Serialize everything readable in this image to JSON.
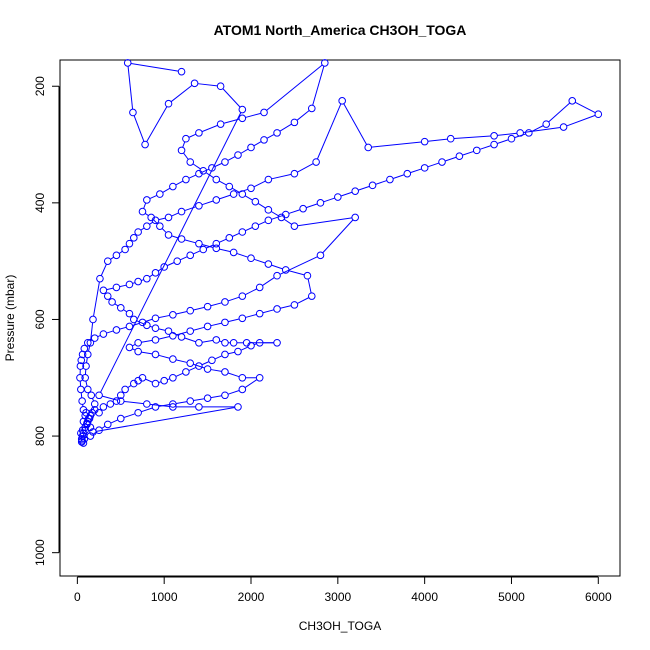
{
  "chart_data": {
    "type": "line",
    "title": "ATOM1 North_America CH3OH_TOGA",
    "xlabel": "CH3OH_TOGA",
    "ylabel": "Pressure (mbar)",
    "xlim": [
      -200,
      6250
    ],
    "ylim": [
      1040,
      155
    ],
    "y_reversed": true,
    "x_ticks": [
      0,
      1000,
      2000,
      3000,
      4000,
      5000,
      6000
    ],
    "y_ticks": [
      200,
      400,
      600,
      800,
      1000
    ],
    "series_color": "#0000ff",
    "marker": "open-circle",
    "grid": false,
    "legend": "none",
    "points": [
      [
        50,
        810
      ],
      [
        70,
        812
      ],
      [
        55,
        808
      ],
      [
        80,
        805
      ],
      [
        40,
        795
      ],
      [
        60,
        790
      ],
      [
        90,
        785
      ],
      [
        110,
        780
      ],
      [
        70,
        775
      ],
      [
        130,
        770
      ],
      [
        150,
        765
      ],
      [
        100,
        760
      ],
      [
        200,
        755
      ],
      [
        250,
        760
      ],
      [
        300,
        750
      ],
      [
        380,
        745
      ],
      [
        450,
        740
      ],
      [
        500,
        730
      ],
      [
        550,
        720
      ],
      [
        650,
        710
      ],
      [
        700,
        705
      ],
      [
        750,
        700
      ],
      [
        900,
        710
      ],
      [
        1000,
        705
      ],
      [
        1100,
        700
      ],
      [
        1250,
        690
      ],
      [
        1400,
        680
      ],
      [
        1550,
        670
      ],
      [
        1700,
        660
      ],
      [
        1850,
        655
      ],
      [
        2000,
        645
      ],
      [
        2100,
        640
      ],
      [
        2300,
        640
      ],
      [
        1950,
        640
      ],
      [
        1800,
        640
      ],
      [
        1700,
        640
      ],
      [
        1600,
        635
      ],
      [
        1400,
        640
      ],
      [
        1200,
        630
      ],
      [
        1050,
        620
      ],
      [
        900,
        615
      ],
      [
        800,
        610
      ],
      [
        650,
        600
      ],
      [
        600,
        590
      ],
      [
        500,
        580
      ],
      [
        400,
        570
      ],
      [
        350,
        560
      ],
      [
        300,
        550
      ],
      [
        450,
        545
      ],
      [
        600,
        540
      ],
      [
        700,
        535
      ],
      [
        800,
        530
      ],
      [
        900,
        520
      ],
      [
        1000,
        510
      ],
      [
        1150,
        500
      ],
      [
        1300,
        490
      ],
      [
        1450,
        480
      ],
      [
        1600,
        470
      ],
      [
        1750,
        460
      ],
      [
        1900,
        450
      ],
      [
        2050,
        440
      ],
      [
        2200,
        430
      ],
      [
        2400,
        420
      ],
      [
        2600,
        410
      ],
      [
        2800,
        400
      ],
      [
        3000,
        390
      ],
      [
        3200,
        380
      ],
      [
        3400,
        370
      ],
      [
        3600,
        360
      ],
      [
        3800,
        350
      ],
      [
        4000,
        340
      ],
      [
        4200,
        330
      ],
      [
        4400,
        320
      ],
      [
        4600,
        310
      ],
      [
        4800,
        300
      ],
      [
        5000,
        290
      ],
      [
        5200,
        280
      ],
      [
        5400,
        265
      ],
      [
        5700,
        225
      ],
      [
        6000,
        248
      ],
      [
        5600,
        270
      ],
      [
        5100,
        280
      ],
      [
        4800,
        285
      ],
      [
        4300,
        290
      ],
      [
        4000,
        295
      ],
      [
        3350,
        305
      ],
      [
        3050,
        225
      ],
      [
        2750,
        330
      ],
      [
        2500,
        350
      ],
      [
        2200,
        360
      ],
      [
        2000,
        375
      ],
      [
        1800,
        385
      ],
      [
        1600,
        395
      ],
      [
        1400,
        405
      ],
      [
        1200,
        415
      ],
      [
        1050,
        425
      ],
      [
        900,
        430
      ],
      [
        800,
        440
      ],
      [
        700,
        450
      ],
      [
        650,
        460
      ],
      [
        600,
        470
      ],
      [
        550,
        480
      ],
      [
        450,
        490
      ],
      [
        350,
        500
      ],
      [
        260,
        530
      ],
      [
        180,
        600
      ],
      [
        150,
        640
      ],
      [
        120,
        660
      ],
      [
        100,
        680
      ],
      [
        90,
        700
      ],
      [
        120,
        720
      ],
      [
        160,
        730
      ],
      [
        200,
        745
      ],
      [
        170,
        760
      ],
      [
        140,
        770
      ],
      [
        110,
        778
      ],
      [
        90,
        790
      ],
      [
        70,
        795
      ],
      [
        60,
        800
      ],
      [
        50,
        805
      ],
      [
        150,
        800
      ],
      [
        250,
        790
      ],
      [
        350,
        780
      ],
      [
        500,
        770
      ],
      [
        700,
        760
      ],
      [
        900,
        750
      ],
      [
        1100,
        745
      ],
      [
        1300,
        740
      ],
      [
        1500,
        735
      ],
      [
        1700,
        730
      ],
      [
        1900,
        720
      ],
      [
        2100,
        700
      ],
      [
        1900,
        700
      ],
      [
        1700,
        690
      ],
      [
        1500,
        685
      ],
      [
        1300,
        675
      ],
      [
        1100,
        668
      ],
      [
        900,
        660
      ],
      [
        700,
        655
      ],
      [
        600,
        648
      ],
      [
        700,
        640
      ],
      [
        900,
        635
      ],
      [
        1100,
        628
      ],
      [
        1300,
        620
      ],
      [
        1500,
        612
      ],
      [
        1700,
        605
      ],
      [
        1900,
        598
      ],
      [
        2100,
        590
      ],
      [
        2300,
        582
      ],
      [
        2500,
        575
      ],
      [
        2700,
        560
      ],
      [
        2650,
        525
      ],
      [
        2400,
        515
      ],
      [
        2200,
        505
      ],
      [
        2000,
        495
      ],
      [
        1800,
        485
      ],
      [
        1600,
        478
      ],
      [
        1400,
        470
      ],
      [
        1200,
        462
      ],
      [
        1050,
        455
      ],
      [
        950,
        440
      ],
      [
        850,
        425
      ],
      [
        750,
        415
      ],
      [
        800,
        395
      ],
      [
        950,
        385
      ],
      [
        1100,
        372
      ],
      [
        1250,
        360
      ],
      [
        1400,
        350
      ],
      [
        1550,
        340
      ],
      [
        1700,
        330
      ],
      [
        1850,
        318
      ],
      [
        2000,
        305
      ],
      [
        2150,
        292
      ],
      [
        2300,
        280
      ],
      [
        2500,
        262
      ],
      [
        2700,
        238
      ],
      [
        2850,
        160
      ],
      [
        2150,
        245
      ],
      [
        1900,
        255
      ],
      [
        1650,
        265
      ],
      [
        1400,
        280
      ],
      [
        1250,
        290
      ],
      [
        1200,
        310
      ],
      [
        1300,
        330
      ],
      [
        1450,
        345
      ],
      [
        1600,
        360
      ],
      [
        1750,
        372
      ],
      [
        1900,
        385
      ],
      [
        2050,
        398
      ],
      [
        2200,
        412
      ],
      [
        2350,
        425
      ],
      [
        2500,
        440
      ],
      [
        3200,
        425
      ],
      [
        2800,
        490
      ],
      [
        2300,
        525
      ],
      [
        2100,
        545
      ],
      [
        1900,
        560
      ],
      [
        1700,
        570
      ],
      [
        1500,
        578
      ],
      [
        1300,
        585
      ],
      [
        1100,
        592
      ],
      [
        900,
        598
      ],
      [
        750,
        605
      ],
      [
        600,
        612
      ],
      [
        450,
        618
      ],
      [
        300,
        625
      ],
      [
        200,
        632
      ],
      [
        120,
        640
      ],
      [
        80,
        650
      ],
      [
        60,
        660
      ],
      [
        45,
        670
      ],
      [
        35,
        680
      ],
      [
        30,
        700
      ],
      [
        40,
        720
      ],
      [
        55,
        740
      ],
      [
        70,
        755
      ],
      [
        90,
        765
      ],
      [
        120,
        775
      ],
      [
        150,
        785
      ],
      [
        180,
        793
      ],
      [
        1850,
        750
      ],
      [
        1400,
        750
      ],
      [
        1100,
        750
      ],
      [
        800,
        745
      ],
      [
        500,
        740
      ],
      [
        250,
        730
      ],
      [
        1900,
        240
      ],
      [
        1650,
        200
      ],
      [
        1350,
        195
      ],
      [
        1050,
        230
      ],
      [
        780,
        300
      ],
      [
        640,
        245
      ],
      [
        580,
        160
      ],
      [
        1200,
        175
      ]
    ]
  }
}
